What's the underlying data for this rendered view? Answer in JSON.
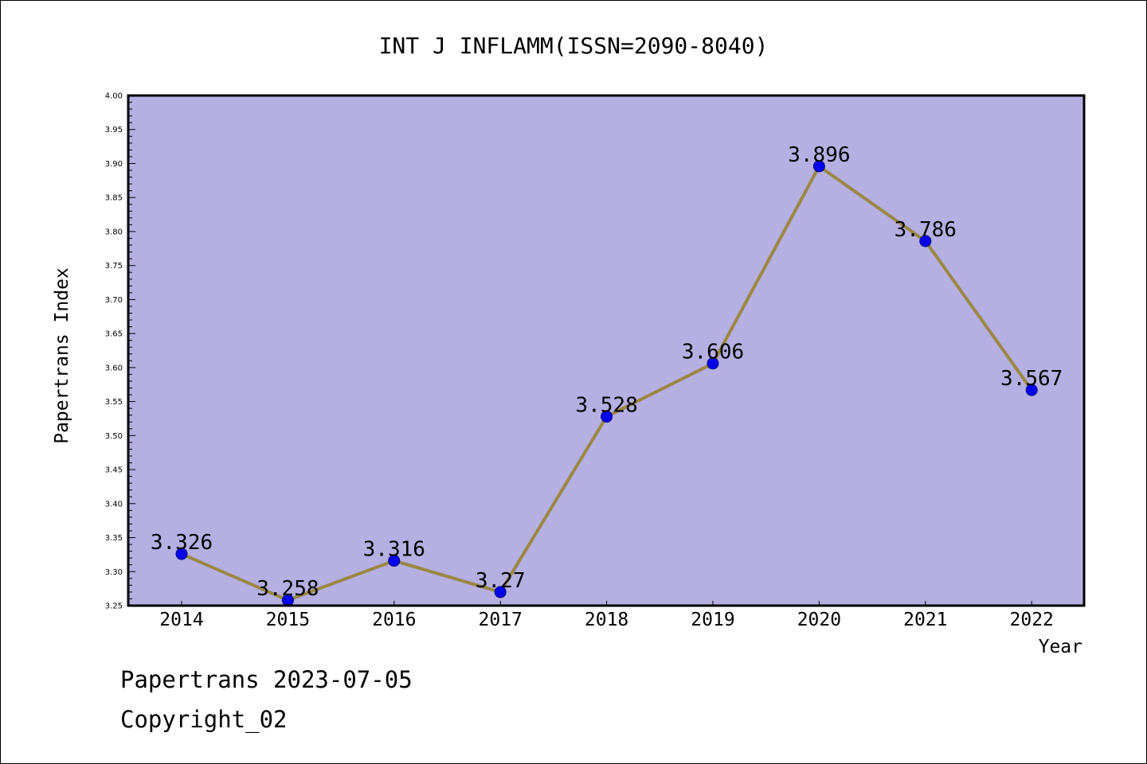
{
  "chart_data": {
    "type": "line",
    "title": "INT J INFLAMM(ISSN=2090-8040)",
    "xlabel": "Year",
    "ylabel": "Papertrans Index",
    "categories": [
      "2014",
      "2015",
      "2016",
      "2017",
      "2018",
      "2019",
      "2020",
      "2021",
      "2022"
    ],
    "values": [
      3.326,
      3.258,
      3.316,
      3.27,
      3.528,
      3.606,
      3.896,
      3.786,
      3.567
    ],
    "value_labels": [
      "3.326",
      "3.258",
      "3.316",
      "3.27",
      "3.528",
      "3.606",
      "3.896",
      "3.786",
      "3.567"
    ],
    "ylim": [
      3.25,
      4.0
    ],
    "yticks": [
      "3.25",
      "3.30",
      "3.35",
      "3.40",
      "3.45",
      "3.50",
      "3.55",
      "3.60",
      "3.65",
      "3.70",
      "3.75",
      "3.80",
      "3.85",
      "3.90",
      "3.95",
      "4.00"
    ],
    "grid": false,
    "legend": "none",
    "colors": {
      "plot_background": "#b5afe2",
      "line": "#9a8743",
      "marker": "#0000ee"
    }
  },
  "footer": {
    "line1": "Papertrans 2023-07-05",
    "line2": "Copyright_02"
  }
}
